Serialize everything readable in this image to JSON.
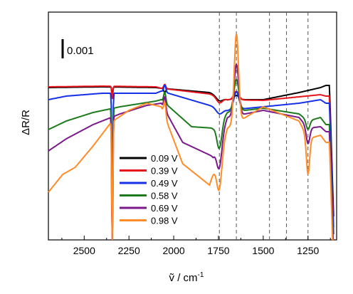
{
  "chart_data": {
    "type": "line",
    "xlabel": "ṽ / cm",
    "xlabel_superscript": "-1",
    "ylabel": "ΔR/R",
    "xlim": [
      2700,
      1090
    ],
    "x_ticks": [
      "2500",
      "2250",
      "2000",
      "1750",
      "1500",
      "1250"
    ],
    "x_tick_values": [
      2500,
      2250,
      2000,
      1750,
      1500,
      1250
    ],
    "y_ticks_visible": false,
    "scale_bar_label": "0.001",
    "grid": false,
    "legend_position": "bottom-center",
    "reference_lines_x": [
      1745,
      1650,
      1465,
      1370,
      1250
    ],
    "series": [
      {
        "name": "0.09 V",
        "color": "#000000"
      },
      {
        "name": "0.39 V",
        "color": "#e8141c"
      },
      {
        "name": "0.49 V",
        "color": "#1430e8"
      },
      {
        "name": "0.58 V",
        "color": "#1d7a1d"
      },
      {
        "name": "0.69 V",
        "color": "#7a1a8a"
      },
      {
        "name": "0.98 V",
        "color": "#ff8c28"
      }
    ]
  }
}
